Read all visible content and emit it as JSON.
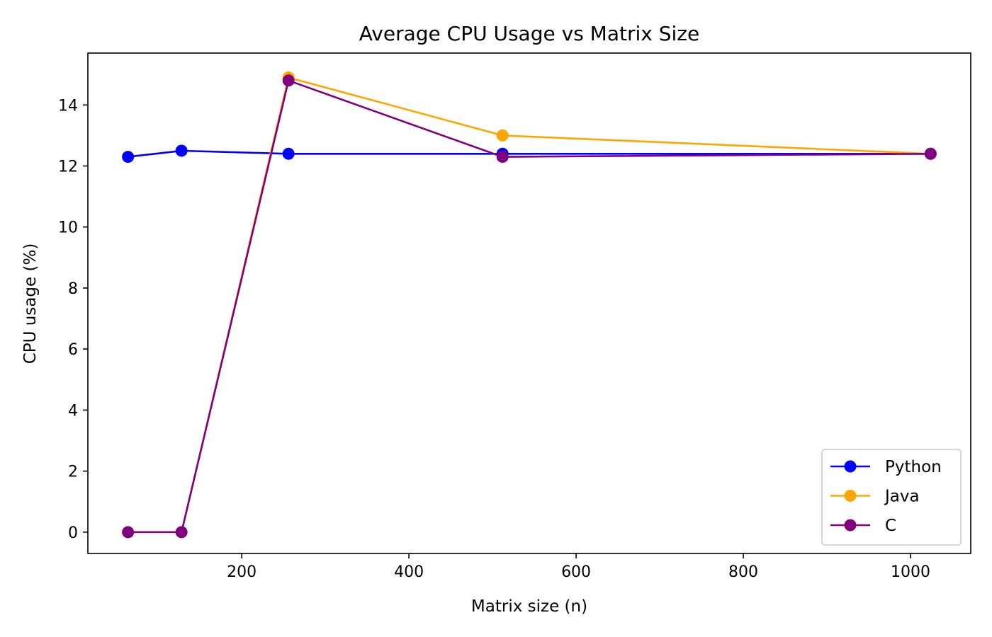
{
  "chart_data": {
    "type": "line",
    "title": "Average CPU Usage vs Matrix Size",
    "xlabel": "Matrix size (n)",
    "ylabel": "CPU usage (%)",
    "x": [
      64,
      128,
      256,
      512,
      1024
    ],
    "xlim": [
      16,
      1072
    ],
    "ylim": [
      -0.7,
      15.7
    ],
    "xticks": [
      200,
      400,
      600,
      800,
      1000
    ],
    "yticks": [
      0,
      2,
      4,
      6,
      8,
      10,
      12,
      14
    ],
    "grid": false,
    "legend_position": "bottom-right",
    "series": [
      {
        "name": "Python",
        "color": "#0000ff",
        "values": [
          12.3,
          12.5,
          12.4,
          12.4,
          12.4
        ]
      },
      {
        "name": "Java",
        "color": "#ffa500",
        "values": [
          0.0,
          0.0,
          14.9,
          13.0,
          12.4
        ]
      },
      {
        "name": "C",
        "color": "#800080",
        "values": [
          0.0,
          0.0,
          14.8,
          12.3,
          12.4
        ]
      }
    ]
  }
}
